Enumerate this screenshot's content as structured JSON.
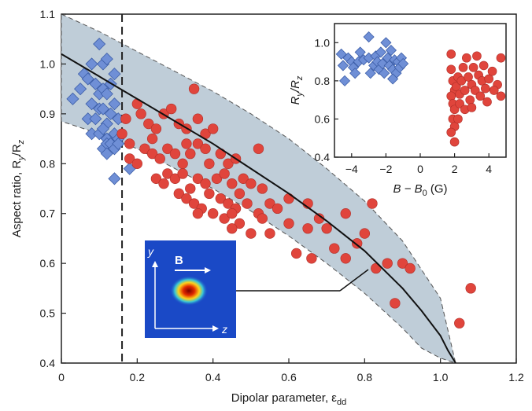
{
  "chart_data": {
    "main": {
      "type": "scatter",
      "xlabel": "Dipolar parameter, ε",
      "xlabel_sub": "dd",
      "ylabel": "Aspect ratio, R",
      "ylabel_tail": "/R",
      "xlim": [
        0,
        1.2
      ],
      "ylim": [
        0.4,
        1.1
      ],
      "xticks": [
        "0",
        "0.2",
        "0.4",
        "0.6",
        "0.8",
        "1.0",
        "1.2"
      ],
      "yticks": [
        "0.4",
        "0.5",
        "0.6",
        "0.7",
        "0.8",
        "0.9",
        "1.0",
        "1.1"
      ],
      "vline_x": 0.16,
      "theory_curve": {
        "x": [
          0.0,
          0.1,
          0.2,
          0.3,
          0.4,
          0.5,
          0.6,
          0.7,
          0.8,
          0.9,
          0.95,
          1.0,
          1.02,
          1.04
        ],
        "y": [
          1.02,
          0.975,
          0.93,
          0.885,
          0.84,
          0.79,
          0.74,
          0.685,
          0.625,
          0.55,
          0.505,
          0.455,
          0.425,
          0.4
        ]
      },
      "band_upper": {
        "x": [
          0.0,
          0.1,
          0.2,
          0.3,
          0.4,
          0.5,
          0.6,
          0.7,
          0.8,
          0.9,
          1.0,
          1.04
        ],
        "y": [
          1.1,
          1.065,
          1.025,
          0.985,
          0.945,
          0.9,
          0.85,
          0.79,
          0.725,
          0.645,
          0.53,
          0.4
        ]
      },
      "band_lower": {
        "x": [
          0.0,
          0.1,
          0.2,
          0.3,
          0.4,
          0.5,
          0.6,
          0.7,
          0.8,
          0.9,
          0.95,
          1.0,
          1.04
        ],
        "y": [
          0.885,
          0.86,
          0.83,
          0.79,
          0.75,
          0.705,
          0.655,
          0.6,
          0.54,
          0.47,
          0.43,
          0.41,
          0.4
        ]
      },
      "series": [
        {
          "marker": "diamond",
          "color": "#6f8fd6",
          "points": [
            [
              0.03,
              0.93
            ],
            [
              0.05,
              0.95
            ],
            [
              0.06,
              0.98
            ],
            [
              0.07,
              0.97
            ],
            [
              0.08,
              1.0
            ],
            [
              0.1,
              1.04
            ],
            [
              0.11,
              1.0
            ],
            [
              0.12,
              1.01
            ],
            [
              0.07,
              0.89
            ],
            [
              0.08,
              0.92
            ],
            [
              0.09,
              0.96
            ],
            [
              0.1,
              0.94
            ],
            [
              0.11,
              0.95
            ],
            [
              0.12,
              0.94
            ],
            [
              0.13,
              0.96
            ],
            [
              0.14,
              0.98
            ],
            [
              0.09,
              0.89
            ],
            [
              0.1,
              0.91
            ],
            [
              0.11,
              0.91
            ],
            [
              0.12,
              0.88
            ],
            [
              0.13,
              0.9
            ],
            [
              0.14,
              0.92
            ],
            [
              0.15,
              0.89
            ],
            [
              0.08,
              0.86
            ],
            [
              0.1,
              0.86
            ],
            [
              0.11,
              0.87
            ],
            [
              0.12,
              0.85
            ],
            [
              0.13,
              0.84
            ],
            [
              0.14,
              0.86
            ],
            [
              0.15,
              0.85
            ],
            [
              0.11,
              0.83
            ],
            [
              0.12,
              0.84
            ],
            [
              0.13,
              0.84
            ],
            [
              0.14,
              0.83
            ],
            [
              0.15,
              0.84
            ],
            [
              0.12,
              0.82
            ],
            [
              0.14,
              0.77
            ],
            [
              0.18,
              0.79
            ]
          ]
        },
        {
          "marker": "circle",
          "color": "#e0453c",
          "points": [
            [
              0.16,
              0.86
            ],
            [
              0.17,
              0.89
            ],
            [
              0.18,
              0.84
            ],
            [
              0.2,
              0.92
            ],
            [
              0.21,
              0.9
            ],
            [
              0.23,
              0.88
            ],
            [
              0.24,
              0.85
            ],
            [
              0.25,
              0.87
            ],
            [
              0.27,
              0.9
            ],
            [
              0.29,
              0.91
            ],
            [
              0.31,
              0.88
            ],
            [
              0.33,
              0.87
            ],
            [
              0.35,
              0.95
            ],
            [
              0.36,
              0.89
            ],
            [
              0.38,
              0.86
            ],
            [
              0.4,
              0.87
            ],
            [
              0.18,
              0.81
            ],
            [
              0.2,
              0.8
            ],
            [
              0.22,
              0.83
            ],
            [
              0.24,
              0.82
            ],
            [
              0.26,
              0.81
            ],
            [
              0.28,
              0.83
            ],
            [
              0.3,
              0.82
            ],
            [
              0.32,
              0.8
            ],
            [
              0.33,
              0.84
            ],
            [
              0.34,
              0.82
            ],
            [
              0.36,
              0.84
            ],
            [
              0.38,
              0.83
            ],
            [
              0.39,
              0.8
            ],
            [
              0.42,
              0.82
            ],
            [
              0.44,
              0.8
            ],
            [
              0.46,
              0.81
            ],
            [
              0.48,
              0.77
            ],
            [
              0.52,
              0.83
            ],
            [
              0.25,
              0.77
            ],
            [
              0.27,
              0.76
            ],
            [
              0.28,
              0.78
            ],
            [
              0.3,
              0.77
            ],
            [
              0.32,
              0.78
            ],
            [
              0.34,
              0.75
            ],
            [
              0.36,
              0.77
            ],
            [
              0.38,
              0.76
            ],
            [
              0.41,
              0.77
            ],
            [
              0.43,
              0.78
            ],
            [
              0.45,
              0.76
            ],
            [
              0.47,
              0.74
            ],
            [
              0.5,
              0.76
            ],
            [
              0.53,
              0.75
            ],
            [
              0.31,
              0.74
            ],
            [
              0.33,
              0.73
            ],
            [
              0.35,
              0.72
            ],
            [
              0.37,
              0.71
            ],
            [
              0.39,
              0.74
            ],
            [
              0.42,
              0.73
            ],
            [
              0.44,
              0.72
            ],
            [
              0.46,
              0.71
            ],
            [
              0.49,
              0.72
            ],
            [
              0.52,
              0.7
            ],
            [
              0.55,
              0.72
            ],
            [
              0.36,
              0.7
            ],
            [
              0.4,
              0.7
            ],
            [
              0.43,
              0.69
            ],
            [
              0.45,
              0.7
            ],
            [
              0.47,
              0.68
            ],
            [
              0.53,
              0.69
            ],
            [
              0.57,
              0.71
            ],
            [
              0.6,
              0.73
            ],
            [
              0.65,
              0.72
            ],
            [
              0.68,
              0.69
            ],
            [
              0.45,
              0.67
            ],
            [
              0.5,
              0.66
            ],
            [
              0.55,
              0.66
            ],
            [
              0.6,
              0.68
            ],
            [
              0.65,
              0.67
            ],
            [
              0.7,
              0.67
            ],
            [
              0.75,
              0.7
            ],
            [
              0.62,
              0.62
            ],
            [
              0.66,
              0.61
            ],
            [
              0.72,
              0.63
            ],
            [
              0.75,
              0.61
            ],
            [
              0.78,
              0.64
            ],
            [
              0.8,
              0.66
            ],
            [
              0.82,
              0.72
            ],
            [
              0.86,
              0.6
            ],
            [
              0.9,
              0.6
            ],
            [
              0.92,
              0.59
            ],
            [
              0.83,
              0.59
            ],
            [
              0.88,
              0.52
            ],
            [
              1.08,
              0.55
            ],
            [
              1.05,
              0.48
            ]
          ]
        }
      ]
    },
    "inset": {
      "type": "scatter",
      "xlabel": "B − B",
      "xlabel_sub": "0",
      "xlabel_unit": " (G)",
      "ylabel": "R",
      "ylabel_tail": "/R",
      "xlim": [
        -5,
        5
      ],
      "ylim": [
        0.4,
        1.1
      ],
      "xticks": [
        "−4",
        "−2",
        "0",
        "2",
        "4"
      ],
      "yticks": [
        "0.4",
        "0.6",
        "0.8",
        "1.0"
      ],
      "series": [
        {
          "marker": "diamond",
          "color": "#6f8fd6",
          "points": [
            [
              -4.6,
              0.94
            ],
            [
              -4.5,
              0.88
            ],
            [
              -4.4,
              0.8
            ],
            [
              -4.2,
              0.92
            ],
            [
              -4.0,
              0.9
            ],
            [
              -3.9,
              0.87
            ],
            [
              -3.8,
              0.84
            ],
            [
              -3.6,
              0.9
            ],
            [
              -3.5,
              0.95
            ],
            [
              -3.3,
              0.91
            ],
            [
              -3.0,
              1.03
            ],
            [
              -3.0,
              0.92
            ],
            [
              -2.9,
              0.84
            ],
            [
              -2.7,
              0.88
            ],
            [
              -2.6,
              0.93
            ],
            [
              -2.5,
              0.9
            ],
            [
              -2.4,
              0.86
            ],
            [
              -2.3,
              0.95
            ],
            [
              -2.2,
              0.89
            ],
            [
              -2.1,
              0.84
            ],
            [
              -2.0,
              1.0
            ],
            [
              -1.9,
              0.92
            ],
            [
              -1.8,
              0.88
            ],
            [
              -1.7,
              0.96
            ],
            [
              -1.6,
              0.86
            ],
            [
              -1.5,
              0.91
            ],
            [
              -1.4,
              0.84
            ],
            [
              -1.3,
              0.9
            ],
            [
              -1.2,
              0.87
            ],
            [
              -1.1,
              0.92
            ],
            [
              -1.0,
              0.89
            ],
            [
              -1.6,
              0.81
            ]
          ]
        },
        {
          "marker": "circle",
          "color": "#e0453c",
          "points": [
            [
              1.8,
              0.94
            ],
            [
              1.8,
              0.86
            ],
            [
              1.9,
              0.8
            ],
            [
              2.0,
              0.75
            ],
            [
              1.8,
              0.72
            ],
            [
              1.9,
              0.68
            ],
            [
              2.0,
              0.65
            ],
            [
              1.9,
              0.6
            ],
            [
              2.0,
              0.56
            ],
            [
              1.8,
              0.53
            ],
            [
              2.0,
              0.48
            ],
            [
              2.1,
              0.77
            ],
            [
              2.2,
              0.82
            ],
            [
              2.3,
              0.73
            ],
            [
              2.3,
              0.68
            ],
            [
              2.4,
              0.8
            ],
            [
              2.5,
              0.87
            ],
            [
              2.6,
              0.75
            ],
            [
              2.6,
              0.65
            ],
            [
              2.7,
              0.92
            ],
            [
              2.8,
              0.82
            ],
            [
              2.9,
              0.7
            ],
            [
              3.0,
              0.78
            ],
            [
              3.1,
              0.87
            ],
            [
              3.2,
              0.75
            ],
            [
              3.3,
              0.93
            ],
            [
              3.4,
              0.83
            ],
            [
              3.5,
              0.72
            ],
            [
              3.6,
              0.8
            ],
            [
              3.7,
              0.88
            ],
            [
              3.8,
              0.76
            ],
            [
              3.9,
              0.69
            ],
            [
              4.0,
              0.81
            ],
            [
              4.2,
              0.85
            ],
            [
              4.5,
              0.78
            ],
            [
              4.7,
              0.92
            ],
            [
              4.7,
              0.72
            ],
            [
              4.3,
              0.75
            ],
            [
              3.0,
              0.66
            ],
            [
              2.2,
              0.6
            ]
          ]
        }
      ]
    },
    "image_inset": {
      "labels": {
        "y": "y",
        "z": "z",
        "field": "B"
      }
    }
  }
}
